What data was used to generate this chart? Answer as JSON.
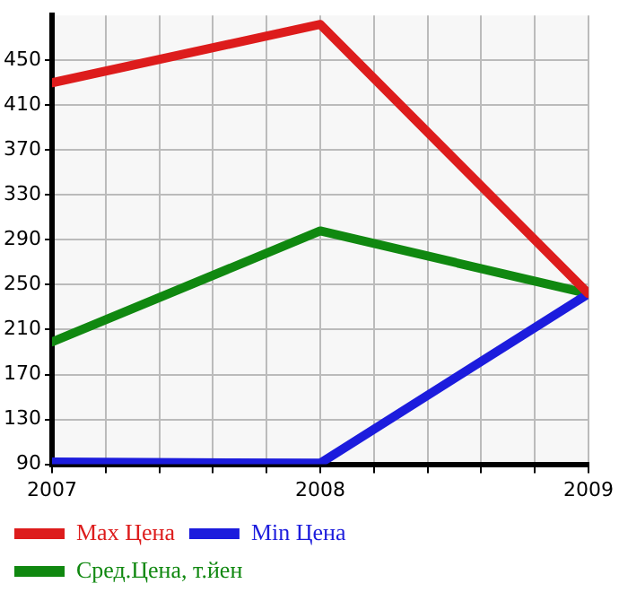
{
  "chart_data": {
    "type": "line",
    "x": [
      2007,
      2008,
      2009
    ],
    "series": [
      {
        "name": "Max Цена",
        "color": "#dd1c1c",
        "values": [
          430,
          482,
          242
        ]
      },
      {
        "name": "Min Цена",
        "color": "#1c1cdd",
        "values": [
          92,
          91,
          242
        ]
      },
      {
        "name": "Сред.Цена, т.йен",
        "color": "#108810",
        "values": [
          199,
          298,
          242
        ]
      }
    ],
    "xlim": [
      2007,
      2009
    ],
    "xticks": [
      2007,
      {
        "value": 2007.2,
        "label": null
      },
      {
        "value": 2007.4,
        "label": null
      },
      {
        "value": 2007.6,
        "label": null
      },
      {
        "value": 2007.8,
        "label": null
      },
      2008,
      {
        "value": 2008.2,
        "label": null
      },
      {
        "value": 2008.4,
        "label": null
      },
      {
        "value": 2008.6,
        "label": null
      },
      {
        "value": 2008.8,
        "label": null
      },
      2009
    ],
    "ylim": [
      90,
      490
    ],
    "yticks": [
      90,
      130,
      170,
      210,
      250,
      290,
      330,
      370,
      410,
      450
    ],
    "grid": true,
    "legend": "bottom",
    "marker": "none",
    "line_style": "solid"
  }
}
